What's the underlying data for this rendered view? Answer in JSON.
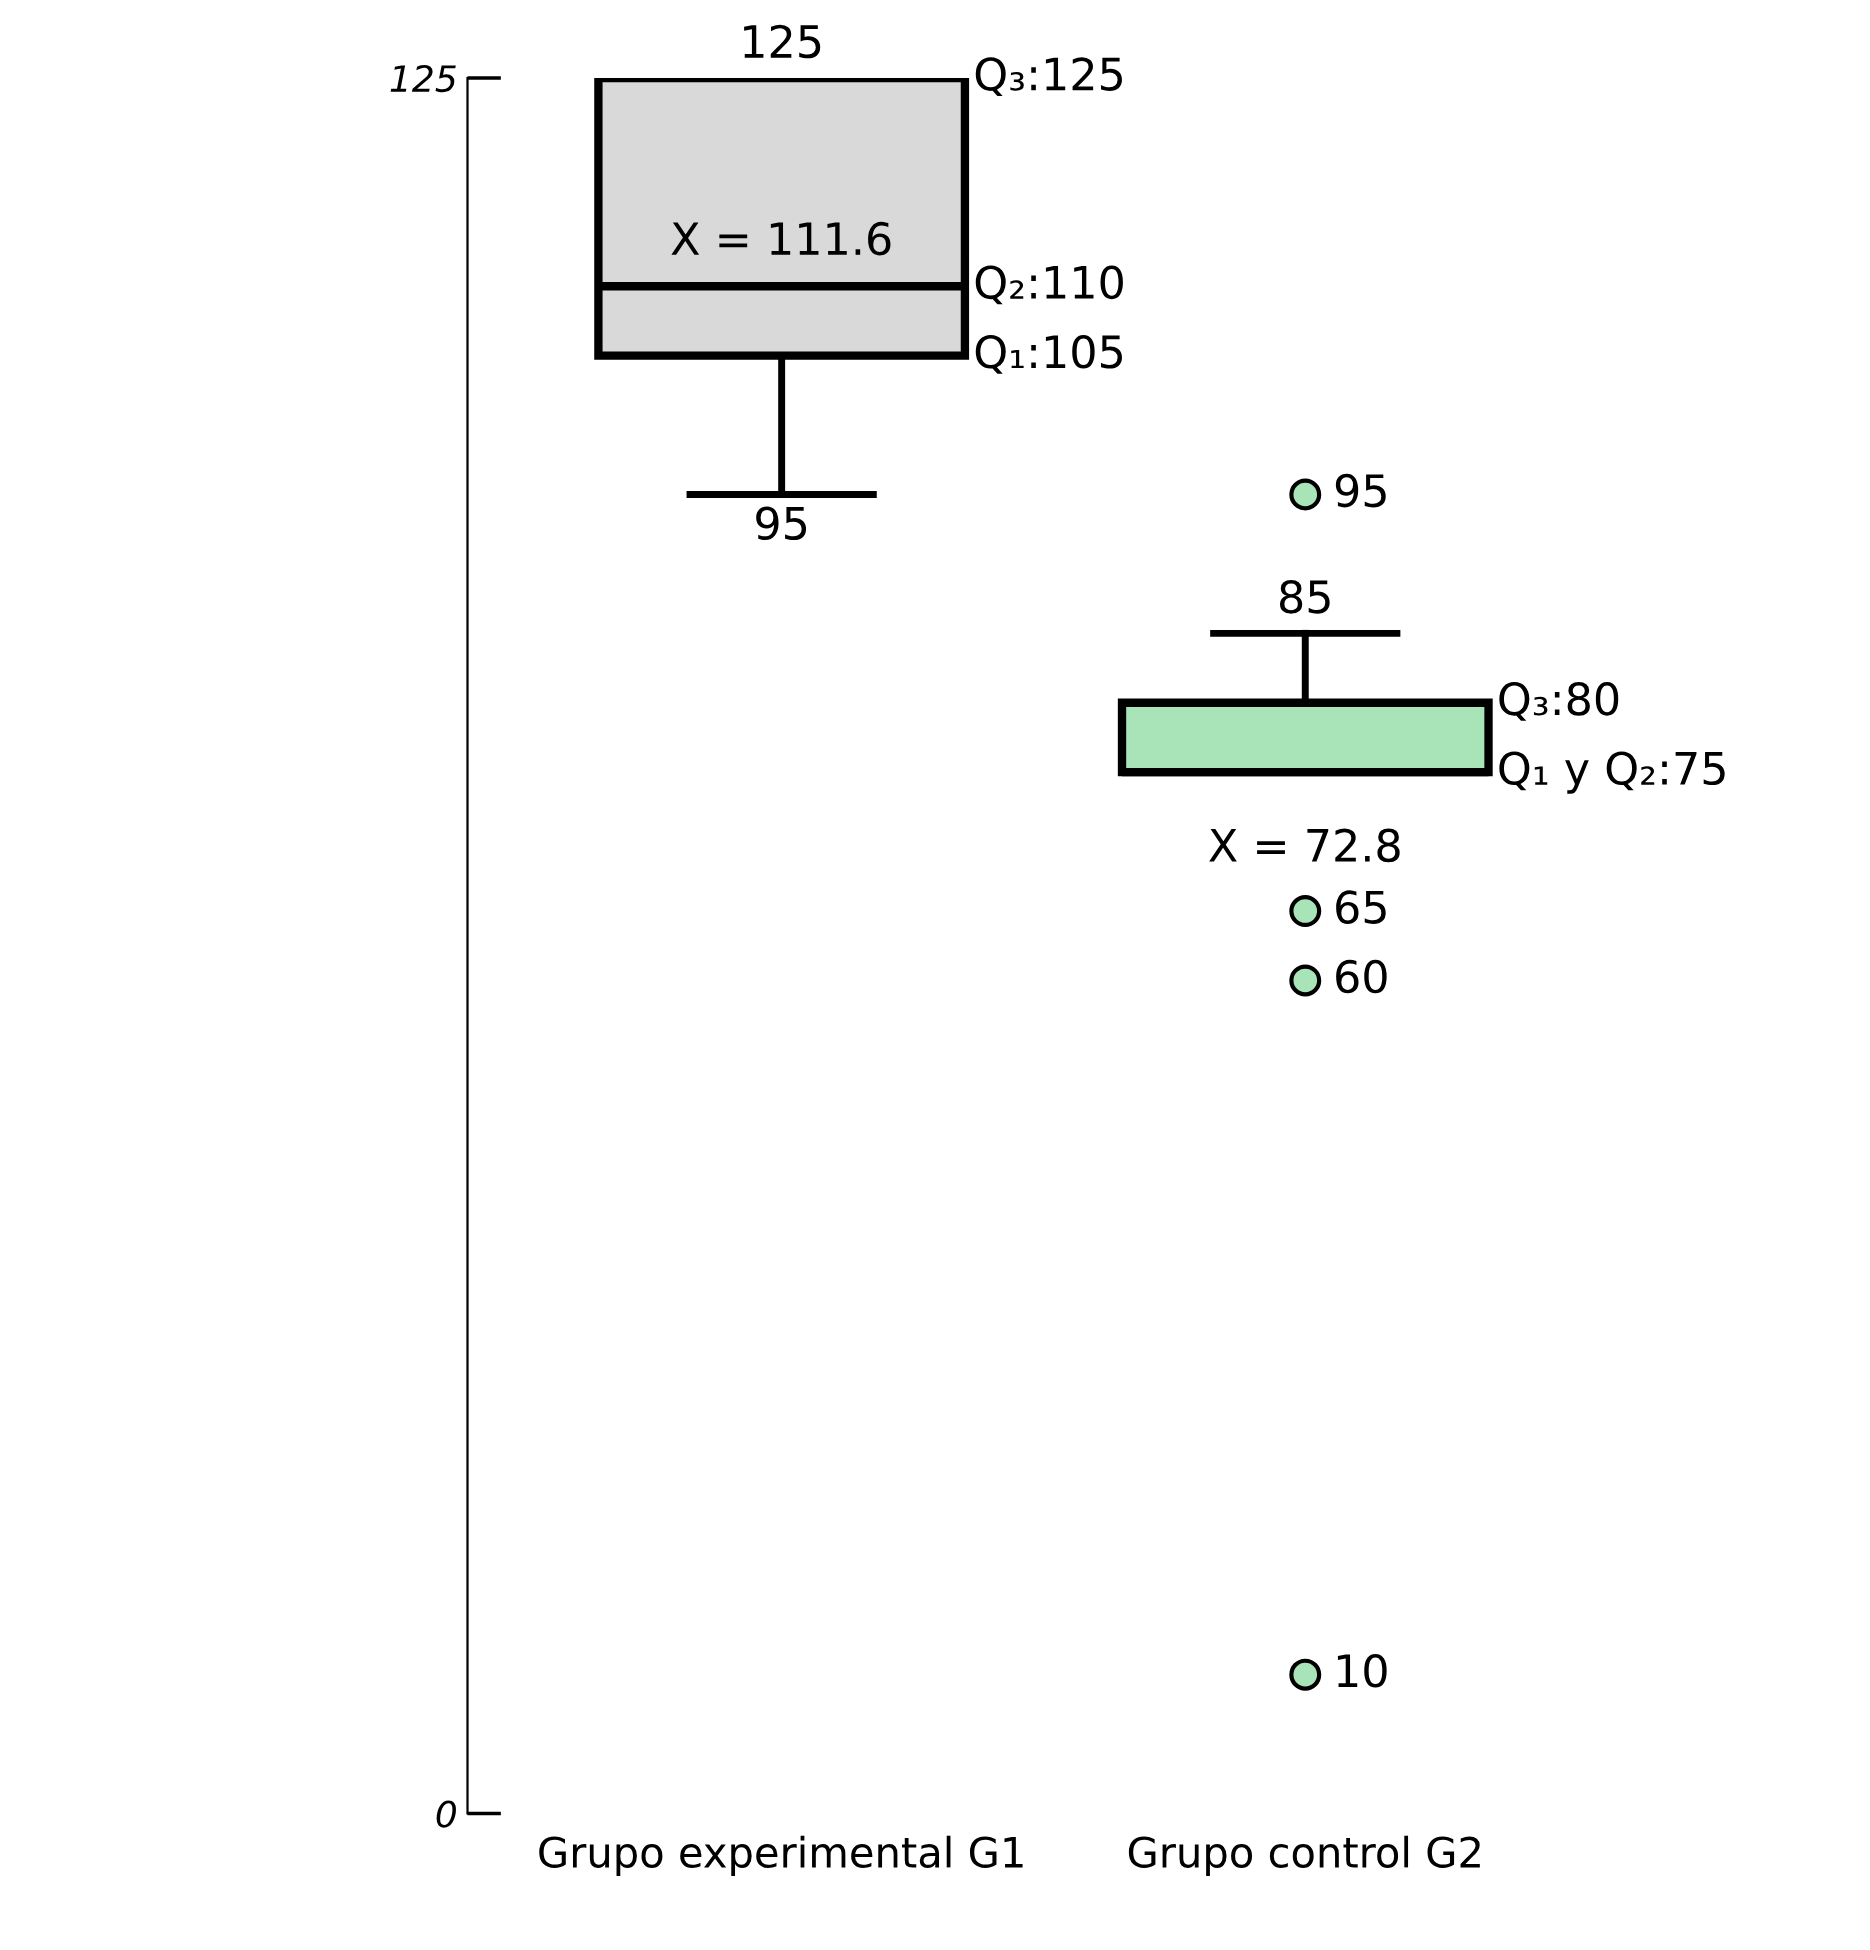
{
  "chart_data": {
    "type": "box",
    "categories": [
      "Grupo experimental G1",
      "Grupo control G2"
    ],
    "series": [
      {
        "color": "#d9d9d9",
        "boxes": [
          {
            "low": 95,
            "q1": 105,
            "median": 110,
            "q3": 125,
            "high": 125
          },
          null
        ]
      },
      {
        "color": "#a8e4b8",
        "boxes": [
          null,
          {
            "low": 75,
            "q1": 75,
            "median": 75,
            "q3": 80,
            "high": 85,
            "outliers": [
              95,
              65,
              60,
              10
            ]
          }
        ]
      }
    ],
    "ylim": [
      0,
      125
    ],
    "yticks": [
      0,
      125
    ],
    "grid": false,
    "annotations": [
      {
        "text": "125",
        "x": "Grupo experimental G1",
        "y": 125
      },
      {
        "text": "95",
        "x": "Grupo experimental G1",
        "y": 95
      },
      {
        "text": "85",
        "x": "Grupo control G2",
        "y": 85
      },
      "Q₃:125",
      "X = 111.6",
      "Q₂:110",
      "Q₁:105",
      "Q₃:80",
      "Q₁ y Q₂:75",
      "X = 72.8",
      "95",
      "65",
      "60",
      "10"
    ]
  }
}
